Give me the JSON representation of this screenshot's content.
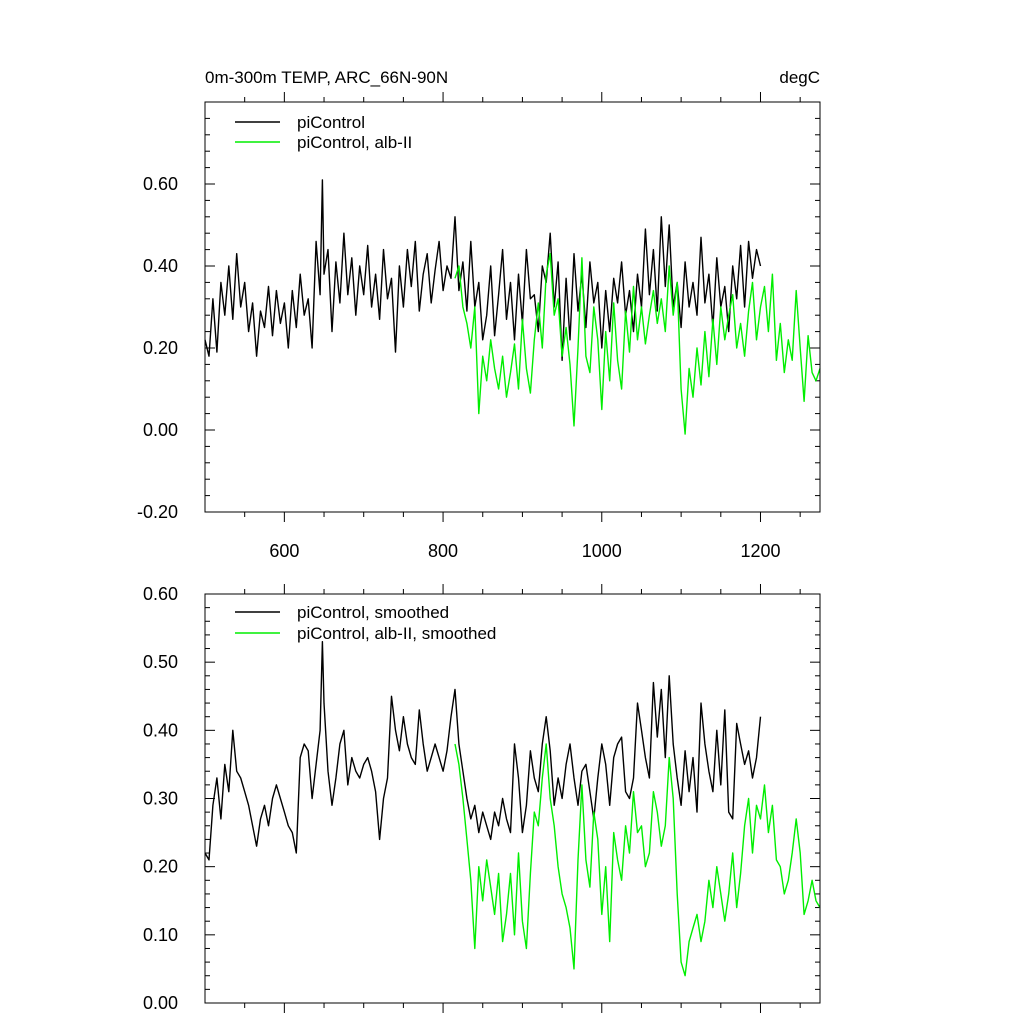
{
  "colors": {
    "black_series": "#000000",
    "green_series": "#00ee00",
    "axis": "#000000",
    "background": "#ffffff"
  },
  "chart_data": [
    {
      "type": "line",
      "title": "0m-300m TEMP, ARC_66N-90N",
      "units_label": "degC",
      "xlabel": "",
      "ylabel": "",
      "xlim": [
        500,
        1275
      ],
      "ylim": [
        -0.2,
        0.8
      ],
      "x_ticks": [
        600,
        800,
        1000,
        1200
      ],
      "x_tick_labels": [
        "600",
        "800",
        "1000",
        "1200"
      ],
      "y_ticks": [
        -0.2,
        0.0,
        0.2,
        0.4,
        0.6
      ],
      "y_tick_labels": [
        "-0.20",
        "0.00",
        "0.20",
        "0.40",
        "0.60"
      ],
      "legend_position": "top-left",
      "grid": false,
      "series": [
        {
          "name": "piControl",
          "color": "#000000",
          "x": [
            500,
            505,
            510,
            515,
            520,
            525,
            530,
            535,
            540,
            545,
            550,
            555,
            560,
            565,
            570,
            575,
            580,
            585,
            590,
            595,
            600,
            605,
            610,
            615,
            620,
            625,
            630,
            635,
            640,
            645,
            648,
            650,
            655,
            660,
            665,
            670,
            675,
            680,
            685,
            690,
            695,
            700,
            705,
            710,
            715,
            720,
            725,
            730,
            735,
            740,
            745,
            750,
            755,
            760,
            765,
            770,
            775,
            780,
            785,
            790,
            795,
            800,
            805,
            810,
            815,
            820,
            825,
            830,
            835,
            840,
            845,
            850,
            855,
            860,
            865,
            870,
            875,
            880,
            885,
            890,
            895,
            900,
            905,
            910,
            915,
            920,
            925,
            930,
            935,
            940,
            945,
            950,
            955,
            960,
            965,
            970,
            975,
            980,
            985,
            990,
            995,
            1000,
            1005,
            1010,
            1015,
            1020,
            1025,
            1030,
            1035,
            1040,
            1045,
            1050,
            1055,
            1060,
            1065,
            1070,
            1075,
            1080,
            1085,
            1090,
            1095,
            1100,
            1105,
            1110,
            1115,
            1120,
            1125,
            1130,
            1135,
            1140,
            1145,
            1150,
            1155,
            1160,
            1165,
            1170,
            1175,
            1180,
            1185,
            1190,
            1195,
            1200
          ],
          "y": [
            0.22,
            0.18,
            0.32,
            0.19,
            0.36,
            0.28,
            0.4,
            0.27,
            0.43,
            0.3,
            0.36,
            0.24,
            0.31,
            0.18,
            0.29,
            0.25,
            0.35,
            0.23,
            0.34,
            0.26,
            0.31,
            0.2,
            0.34,
            0.25,
            0.38,
            0.28,
            0.32,
            0.2,
            0.46,
            0.33,
            0.61,
            0.38,
            0.44,
            0.24,
            0.41,
            0.31,
            0.48,
            0.33,
            0.42,
            0.28,
            0.4,
            0.33,
            0.45,
            0.3,
            0.38,
            0.27,
            0.44,
            0.32,
            0.37,
            0.19,
            0.4,
            0.3,
            0.44,
            0.35,
            0.46,
            0.29,
            0.38,
            0.43,
            0.31,
            0.39,
            0.46,
            0.34,
            0.4,
            0.37,
            0.52,
            0.34,
            0.41,
            0.29,
            0.46,
            0.3,
            0.36,
            0.22,
            0.28,
            0.4,
            0.23,
            0.33,
            0.44,
            0.27,
            0.36,
            0.22,
            0.38,
            0.26,
            0.44,
            0.32,
            0.33,
            0.24,
            0.4,
            0.36,
            0.48,
            0.3,
            0.41,
            0.17,
            0.37,
            0.22,
            0.43,
            0.29,
            0.38,
            0.25,
            0.41,
            0.31,
            0.36,
            0.2,
            0.34,
            0.24,
            0.37,
            0.31,
            0.41,
            0.28,
            0.34,
            0.24,
            0.38,
            0.3,
            0.49,
            0.33,
            0.44,
            0.29,
            0.52,
            0.35,
            0.5,
            0.3,
            0.36,
            0.25,
            0.41,
            0.3,
            0.36,
            0.28,
            0.47,
            0.31,
            0.38,
            0.25,
            0.42,
            0.3,
            0.35,
            0.24,
            0.4,
            0.32,
            0.45,
            0.3,
            0.46,
            0.37,
            0.44,
            0.4
          ]
        },
        {
          "name": "piControl, alb-II",
          "color": "#00ee00",
          "x": [
            815,
            820,
            825,
            830,
            835,
            840,
            845,
            850,
            855,
            860,
            865,
            870,
            875,
            880,
            885,
            890,
            895,
            900,
            905,
            910,
            915,
            920,
            925,
            930,
            935,
            940,
            945,
            950,
            955,
            960,
            965,
            970,
            975,
            980,
            985,
            990,
            995,
            1000,
            1005,
            1010,
            1015,
            1020,
            1025,
            1030,
            1035,
            1040,
            1045,
            1050,
            1055,
            1060,
            1065,
            1070,
            1075,
            1080,
            1085,
            1090,
            1095,
            1100,
            1105,
            1110,
            1115,
            1120,
            1125,
            1130,
            1135,
            1140,
            1145,
            1150,
            1155,
            1160,
            1165,
            1170,
            1175,
            1180,
            1185,
            1190,
            1195,
            1200,
            1205,
            1210,
            1215,
            1220,
            1225,
            1230,
            1235,
            1240,
            1245,
            1250,
            1255,
            1260,
            1265,
            1270,
            1275
          ],
          "y": [
            0.37,
            0.4,
            0.3,
            0.26,
            0.2,
            0.3,
            0.04,
            0.18,
            0.12,
            0.22,
            0.15,
            0.1,
            0.18,
            0.08,
            0.14,
            0.21,
            0.1,
            0.27,
            0.15,
            0.09,
            0.22,
            0.31,
            0.2,
            0.38,
            0.43,
            0.28,
            0.32,
            0.18,
            0.25,
            0.16,
            0.01,
            0.2,
            0.42,
            0.18,
            0.14,
            0.3,
            0.22,
            0.05,
            0.24,
            0.12,
            0.31,
            0.17,
            0.1,
            0.29,
            0.19,
            0.35,
            0.22,
            0.3,
            0.21,
            0.28,
            0.34,
            0.26,
            0.32,
            0.24,
            0.4,
            0.28,
            0.36,
            0.1,
            -0.01,
            0.15,
            0.08,
            0.2,
            0.11,
            0.24,
            0.13,
            0.27,
            0.16,
            0.3,
            0.22,
            0.28,
            0.33,
            0.2,
            0.26,
            0.18,
            0.29,
            0.36,
            0.22,
            0.3,
            0.35,
            0.24,
            0.38,
            0.17,
            0.26,
            0.14,
            0.22,
            0.17,
            0.34,
            0.2,
            0.07,
            0.23,
            0.14,
            0.12,
            0.15
          ]
        }
      ]
    },
    {
      "type": "line",
      "title": "",
      "xlabel": "",
      "ylabel": "",
      "xlim": [
        500,
        1275
      ],
      "ylim": [
        0.0,
        0.6
      ],
      "x_ticks": [
        600,
        800,
        1000,
        1200
      ],
      "x_tick_labels": [],
      "y_ticks": [
        0.0,
        0.1,
        0.2,
        0.3,
        0.4,
        0.5,
        0.6
      ],
      "y_tick_labels": [
        "0.00",
        "0.10",
        "0.20",
        "0.30",
        "0.40",
        "0.50",
        "0.60"
      ],
      "legend_position": "top-left",
      "grid": false,
      "series": [
        {
          "name": "piControl, smoothed",
          "color": "#000000",
          "x": [
            500,
            505,
            510,
            515,
            520,
            525,
            530,
            535,
            540,
            545,
            550,
            555,
            560,
            565,
            570,
            575,
            580,
            585,
            590,
            595,
            600,
            605,
            610,
            615,
            620,
            625,
            630,
            635,
            640,
            645,
            648,
            650,
            655,
            660,
            665,
            670,
            675,
            680,
            685,
            690,
            695,
            700,
            705,
            710,
            715,
            720,
            725,
            730,
            735,
            740,
            745,
            750,
            755,
            760,
            765,
            770,
            775,
            780,
            785,
            790,
            795,
            800,
            805,
            810,
            815,
            820,
            825,
            830,
            835,
            840,
            845,
            850,
            855,
            860,
            865,
            870,
            875,
            880,
            885,
            890,
            895,
            900,
            905,
            910,
            915,
            920,
            925,
            930,
            935,
            940,
            945,
            950,
            955,
            960,
            965,
            970,
            975,
            980,
            985,
            990,
            995,
            1000,
            1005,
            1010,
            1015,
            1020,
            1025,
            1030,
            1035,
            1040,
            1045,
            1050,
            1055,
            1060,
            1065,
            1070,
            1075,
            1080,
            1085,
            1090,
            1095,
            1100,
            1105,
            1110,
            1115,
            1120,
            1125,
            1130,
            1135,
            1140,
            1145,
            1150,
            1155,
            1160,
            1165,
            1170,
            1175,
            1180,
            1185,
            1190,
            1195,
            1200
          ],
          "y": [
            0.22,
            0.21,
            0.29,
            0.33,
            0.27,
            0.35,
            0.31,
            0.4,
            0.34,
            0.33,
            0.31,
            0.29,
            0.26,
            0.23,
            0.27,
            0.29,
            0.26,
            0.3,
            0.32,
            0.3,
            0.28,
            0.26,
            0.25,
            0.22,
            0.36,
            0.38,
            0.37,
            0.3,
            0.35,
            0.4,
            0.53,
            0.44,
            0.34,
            0.29,
            0.33,
            0.38,
            0.4,
            0.32,
            0.36,
            0.34,
            0.33,
            0.35,
            0.36,
            0.34,
            0.31,
            0.24,
            0.3,
            0.33,
            0.45,
            0.4,
            0.37,
            0.42,
            0.38,
            0.36,
            0.35,
            0.43,
            0.38,
            0.34,
            0.36,
            0.38,
            0.36,
            0.34,
            0.37,
            0.42,
            0.46,
            0.38,
            0.34,
            0.3,
            0.27,
            0.29,
            0.25,
            0.28,
            0.26,
            0.24,
            0.28,
            0.26,
            0.3,
            0.27,
            0.25,
            0.38,
            0.33,
            0.25,
            0.29,
            0.37,
            0.33,
            0.31,
            0.38,
            0.42,
            0.37,
            0.29,
            0.33,
            0.3,
            0.35,
            0.38,
            0.33,
            0.29,
            0.34,
            0.35,
            0.31,
            0.27,
            0.33,
            0.38,
            0.35,
            0.29,
            0.36,
            0.38,
            0.39,
            0.31,
            0.3,
            0.33,
            0.44,
            0.4,
            0.36,
            0.33,
            0.47,
            0.39,
            0.46,
            0.36,
            0.48,
            0.38,
            0.33,
            0.29,
            0.37,
            0.31,
            0.36,
            0.28,
            0.44,
            0.38,
            0.34,
            0.31,
            0.4,
            0.32,
            0.43,
            0.28,
            0.27,
            0.41,
            0.38,
            0.35,
            0.37,
            0.33,
            0.36,
            0.42
          ]
        },
        {
          "name": "piControl, alb-II, smoothed",
          "color": "#00ee00",
          "x": [
            815,
            820,
            825,
            830,
            835,
            840,
            845,
            850,
            855,
            860,
            865,
            870,
            875,
            880,
            885,
            890,
            895,
            900,
            905,
            910,
            915,
            920,
            925,
            930,
            935,
            940,
            945,
            950,
            955,
            960,
            965,
            970,
            975,
            980,
            985,
            990,
            995,
            1000,
            1005,
            1010,
            1015,
            1020,
            1025,
            1030,
            1035,
            1040,
            1045,
            1050,
            1055,
            1060,
            1065,
            1070,
            1075,
            1080,
            1085,
            1090,
            1095,
            1100,
            1105,
            1110,
            1115,
            1120,
            1125,
            1130,
            1135,
            1140,
            1145,
            1150,
            1155,
            1160,
            1165,
            1170,
            1175,
            1180,
            1185,
            1190,
            1195,
            1200,
            1205,
            1210,
            1215,
            1220,
            1225,
            1230,
            1235,
            1240,
            1245,
            1250,
            1255,
            1260,
            1265,
            1270,
            1275
          ],
          "y": [
            0.38,
            0.35,
            0.3,
            0.24,
            0.18,
            0.08,
            0.2,
            0.15,
            0.21,
            0.17,
            0.13,
            0.19,
            0.09,
            0.13,
            0.19,
            0.1,
            0.22,
            0.12,
            0.08,
            0.19,
            0.28,
            0.26,
            0.33,
            0.38,
            0.3,
            0.26,
            0.2,
            0.16,
            0.14,
            0.11,
            0.05,
            0.21,
            0.32,
            0.21,
            0.17,
            0.28,
            0.24,
            0.13,
            0.2,
            0.09,
            0.25,
            0.21,
            0.18,
            0.26,
            0.22,
            0.31,
            0.25,
            0.26,
            0.2,
            0.22,
            0.31,
            0.28,
            0.23,
            0.26,
            0.36,
            0.3,
            0.16,
            0.06,
            0.04,
            0.09,
            0.11,
            0.13,
            0.09,
            0.12,
            0.18,
            0.14,
            0.2,
            0.16,
            0.12,
            0.16,
            0.22,
            0.14,
            0.19,
            0.26,
            0.3,
            0.22,
            0.29,
            0.27,
            0.32,
            0.25,
            0.29,
            0.21,
            0.2,
            0.16,
            0.18,
            0.22,
            0.27,
            0.22,
            0.13,
            0.15,
            0.18,
            0.15,
            0.14
          ]
        }
      ]
    }
  ]
}
